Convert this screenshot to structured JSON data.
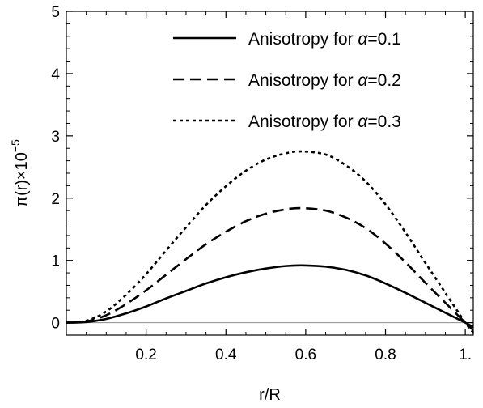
{
  "chart_data": {
    "type": "line",
    "xlabel": "r/R",
    "ylabel_main": "π(r)×10",
    "ylabel_exp": "−5",
    "xlim": [
      0,
      1.02
    ],
    "ylim": [
      -0.2,
      5
    ],
    "x_ticks": [
      {
        "value": 0.2,
        "label": "0.2"
      },
      {
        "value": 0.4,
        "label": "0.4"
      },
      {
        "value": 0.6,
        "label": "0.6"
      },
      {
        "value": 0.8,
        "label": "0.8"
      },
      {
        "value": 1.0,
        "label": "1."
      }
    ],
    "y_ticks": [
      {
        "value": 0,
        "label": "0"
      },
      {
        "value": 1,
        "label": "1"
      },
      {
        "value": 2,
        "label": "2"
      },
      {
        "value": 3,
        "label": "3"
      },
      {
        "value": 4,
        "label": "4"
      },
      {
        "value": 5,
        "label": "5"
      }
    ],
    "legend_position": "top-right",
    "series": [
      {
        "name": "Anisotropy for α=0.1",
        "legend_prefix": "Anisotropy for ",
        "legend_alpha": "α",
        "legend_value": "=0.1",
        "style": "solid",
        "x": [
          0,
          0.05,
          0.1,
          0.15,
          0.2,
          0.25,
          0.3,
          0.35,
          0.4,
          0.45,
          0.5,
          0.55,
          0.59,
          0.65,
          0.7,
          0.75,
          0.8,
          0.85,
          0.9,
          0.95,
          1.0,
          1.02
        ],
        "y": [
          0,
          0.01,
          0.06,
          0.15,
          0.26,
          0.39,
          0.51,
          0.63,
          0.73,
          0.81,
          0.87,
          0.91,
          0.92,
          0.9,
          0.85,
          0.76,
          0.63,
          0.48,
          0.32,
          0.16,
          0.0,
          -0.07
        ]
      },
      {
        "name": "Anisotropy for α=0.2",
        "legend_prefix": "Anisotropy for ",
        "legend_alpha": "α",
        "legend_value": "=0.2",
        "style": "dashed",
        "x": [
          0,
          0.05,
          0.1,
          0.15,
          0.2,
          0.25,
          0.3,
          0.35,
          0.4,
          0.45,
          0.5,
          0.55,
          0.59,
          0.65,
          0.7,
          0.75,
          0.8,
          0.85,
          0.9,
          0.95,
          1.0,
          1.02
        ],
        "y": [
          0,
          0.02,
          0.12,
          0.3,
          0.52,
          0.77,
          1.02,
          1.26,
          1.46,
          1.63,
          1.75,
          1.82,
          1.84,
          1.8,
          1.69,
          1.52,
          1.27,
          0.97,
          0.64,
          0.32,
          0.0,
          -0.12
        ]
      },
      {
        "name": "Anisotropy for α=0.3",
        "legend_prefix": "Anisotropy for ",
        "legend_alpha": "α",
        "legend_value": "=0.3",
        "style": "dotted",
        "x": [
          0,
          0.05,
          0.1,
          0.15,
          0.2,
          0.25,
          0.3,
          0.35,
          0.4,
          0.45,
          0.5,
          0.55,
          0.59,
          0.65,
          0.7,
          0.75,
          0.8,
          0.85,
          0.9,
          0.95,
          1.0,
          1.02
        ],
        "y": [
          0,
          0.03,
          0.18,
          0.45,
          0.78,
          1.16,
          1.53,
          1.89,
          2.19,
          2.44,
          2.62,
          2.72,
          2.75,
          2.7,
          2.53,
          2.27,
          1.9,
          1.45,
          0.96,
          0.48,
          0.0,
          -0.16
        ]
      }
    ]
  }
}
